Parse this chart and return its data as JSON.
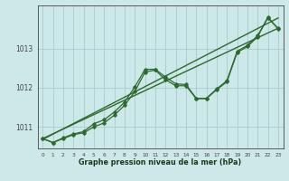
{
  "bg_color": "#cce8e8",
  "line_color": "#2d6a2d",
  "grid_color": "#aacccc",
  "axis_color": "#444444",
  "xlabel": "Graphe pression niveau de la mer (hPa)",
  "xlim": [
    -0.5,
    23.5
  ],
  "ylim": [
    1010.45,
    1014.1
  ],
  "yticks": [
    1011,
    1012,
    1013
  ],
  "xticks": [
    0,
    1,
    2,
    3,
    4,
    5,
    6,
    7,
    8,
    9,
    10,
    11,
    12,
    13,
    14,
    15,
    16,
    17,
    18,
    19,
    20,
    21,
    22,
    23
  ],
  "series1": [
    1010.7,
    1010.6,
    1010.7,
    1010.8,
    1010.85,
    1011.0,
    1011.1,
    1011.3,
    1011.55,
    1011.9,
    1012.4,
    1012.45,
    1012.2,
    1012.05,
    1012.05,
    1011.72,
    1011.72,
    1011.95,
    1012.15,
    1012.9,
    1013.05,
    1013.3,
    1013.8,
    1013.5
  ],
  "series2": [
    1010.7,
    1010.6,
    1010.72,
    1010.82,
    1010.88,
    1011.08,
    1011.18,
    1011.38,
    1011.63,
    1012.02,
    1012.47,
    1012.47,
    1012.27,
    1012.1,
    1012.08,
    1011.73,
    1011.73,
    1011.97,
    1012.18,
    1012.93,
    1013.08,
    1013.33,
    1013.78,
    1013.52
  ],
  "trend_x": [
    0,
    23
  ],
  "trend_y": [
    1010.7,
    1013.52
  ],
  "trend2_x": [
    0,
    23
  ],
  "trend2_y": [
    1010.68,
    1013.78
  ]
}
